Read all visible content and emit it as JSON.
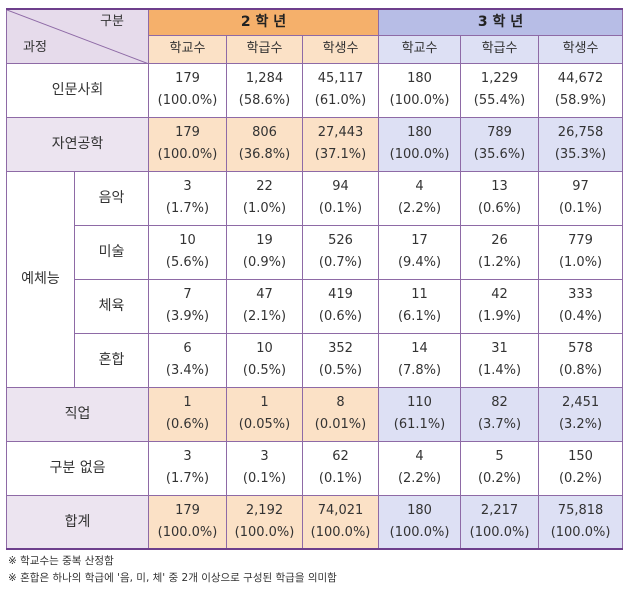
{
  "header": {
    "corner_top": "구분",
    "corner_bottom": "과정",
    "grade2": "2 학 년",
    "grade3": "3 학 년",
    "cols": [
      "학교수",
      "학급수",
      "학생수",
      "학교수",
      "학급수",
      "학생수"
    ]
  },
  "rows": [
    {
      "label": "인문사회",
      "cells": [
        [
          "179",
          "(100.0%)"
        ],
        [
          "1,284",
          "(58.6%)"
        ],
        [
          "45,117",
          "(61.0%)"
        ],
        [
          "180",
          "(100.0%)"
        ],
        [
          "1,229",
          "(55.4%)"
        ],
        [
          "44,672",
          "(58.9%)"
        ]
      ]
    },
    {
      "label": "자연공학",
      "cells": [
        [
          "179",
          "(100.0%)"
        ],
        [
          "806",
          "(36.8%)"
        ],
        [
          "27,443",
          "(37.1%)"
        ],
        [
          "180",
          "(100.0%)"
        ],
        [
          "789",
          "(35.6%)"
        ],
        [
          "26,758",
          "(35.3%)"
        ]
      ]
    },
    {
      "group": "예체능",
      "label": "음악",
      "cells": [
        [
          "3",
          "(1.7%)"
        ],
        [
          "22",
          "(1.0%)"
        ],
        [
          "94",
          "(0.1%)"
        ],
        [
          "4",
          "(2.2%)"
        ],
        [
          "13",
          "(0.6%)"
        ],
        [
          "97",
          "(0.1%)"
        ]
      ]
    },
    {
      "label": "미술",
      "cells": [
        [
          "10",
          "(5.6%)"
        ],
        [
          "19",
          "(0.9%)"
        ],
        [
          "526",
          "(0.7%)"
        ],
        [
          "17",
          "(9.4%)"
        ],
        [
          "26",
          "(1.2%)"
        ],
        [
          "779",
          "(1.0%)"
        ]
      ]
    },
    {
      "label": "체육",
      "cells": [
        [
          "7",
          "(3.9%)"
        ],
        [
          "47",
          "(2.1%)"
        ],
        [
          "419",
          "(0.6%)"
        ],
        [
          "11",
          "(6.1%)"
        ],
        [
          "42",
          "(1.9%)"
        ],
        [
          "333",
          "(0.4%)"
        ]
      ]
    },
    {
      "label": "혼합",
      "cells": [
        [
          "6",
          "(3.4%)"
        ],
        [
          "10",
          "(0.5%)"
        ],
        [
          "352",
          "(0.5%)"
        ],
        [
          "14",
          "(7.8%)"
        ],
        [
          "31",
          "(1.4%)"
        ],
        [
          "578",
          "(0.8%)"
        ]
      ]
    },
    {
      "label": "직업",
      "cells": [
        [
          "1",
          "(0.6%)"
        ],
        [
          "1",
          "(0.05%)"
        ],
        [
          "8",
          "(0.01%)"
        ],
        [
          "110",
          "(61.1%)"
        ],
        [
          "82",
          "(3.7%)"
        ],
        [
          "2,451",
          "(3.2%)"
        ]
      ]
    },
    {
      "label": "구분 없음",
      "cells": [
        [
          "3",
          "(1.7%)"
        ],
        [
          "3",
          "(0.1%)"
        ],
        [
          "62",
          "(0.1%)"
        ],
        [
          "4",
          "(2.2%)"
        ],
        [
          "5",
          "(0.2%)"
        ],
        [
          "150",
          "(0.2%)"
        ]
      ]
    },
    {
      "label": "합계",
      "cells": [
        [
          "179",
          "(100.0%)"
        ],
        [
          "2,192",
          "(100.0%)"
        ],
        [
          "74,021",
          "(100.0%)"
        ],
        [
          "180",
          "(100.0%)"
        ],
        [
          "2,217",
          "(100.0%)"
        ],
        [
          "75,818",
          "(100.0%)"
        ]
      ]
    }
  ],
  "notes": [
    "※ 학교수는 중복 산정함",
    "※ 혼합은 하나의 학급에 '음, 미, 체' 중 2개 이상으로 구성된 학급을 의미함"
  ],
  "colors": {
    "grade2_header": "#f5b06b",
    "grade3_header": "#b7bde6",
    "grade2_shade": "#fbe1c6",
    "grade3_shade": "#dde0f4",
    "label_shade": "#ece4f0",
    "border": "#8e6aa6"
  }
}
